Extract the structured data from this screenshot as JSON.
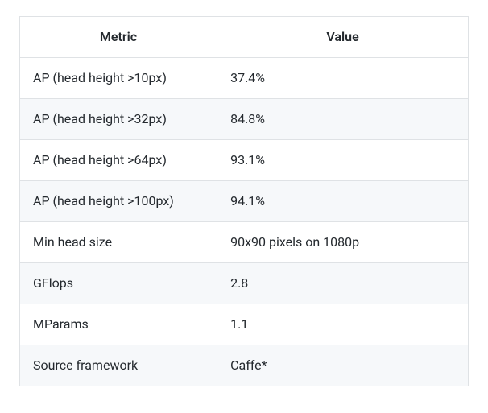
{
  "table": {
    "type": "table",
    "background_color": "#ffffff",
    "stripe_color": "#f6f8fa",
    "border_color": "#dfe2e5",
    "text_color": "#24292e",
    "font_size_pt": 12,
    "header_font_weight": 600,
    "header_align": "center",
    "body_align": "left",
    "cell_padding": "13px 16px",
    "columns": [
      {
        "label": "Metric",
        "width_pct": 44
      },
      {
        "label": "Value",
        "width_pct": 56
      }
    ],
    "rows": [
      {
        "metric": "AP (head height >10px)",
        "value": "37.4%"
      },
      {
        "metric": "AP (head height >32px)",
        "value": "84.8%"
      },
      {
        "metric": "AP (head height >64px)",
        "value": "93.1%"
      },
      {
        "metric": "AP (head height >100px)",
        "value": "94.1%"
      },
      {
        "metric": "Min head size",
        "value": "90x90 pixels on 1080p"
      },
      {
        "metric": "GFlops",
        "value": "2.8"
      },
      {
        "metric": "MParams",
        "value": "1.1"
      },
      {
        "metric": "Source framework",
        "value": "Caffe*"
      }
    ]
  }
}
